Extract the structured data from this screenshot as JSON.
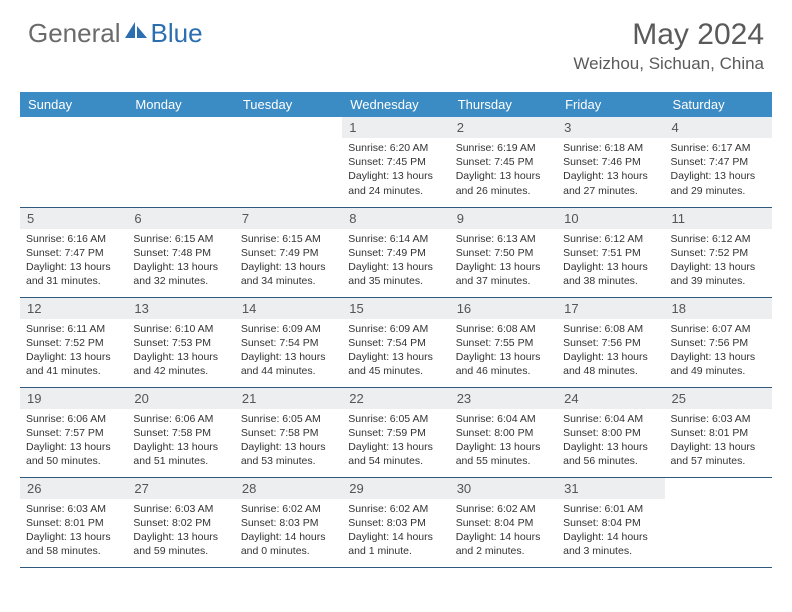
{
  "brand": {
    "name_part1": "General",
    "name_part2": "Blue"
  },
  "title": "May 2024",
  "location": "Weizhou, Sichuan, China",
  "colors": {
    "header_bg": "#3b8bc4",
    "header_text": "#ffffff",
    "daynum_bg": "#eceef0",
    "row_border": "#2f5a7e",
    "logo_gray": "#6b6b6b",
    "logo_blue": "#2c6fb0"
  },
  "weekdays": [
    "Sunday",
    "Monday",
    "Tuesday",
    "Wednesday",
    "Thursday",
    "Friday",
    "Saturday"
  ],
  "weeks": [
    [
      null,
      null,
      null,
      {
        "n": "1",
        "sr": "Sunrise: 6:20 AM",
        "ss": "Sunset: 7:45 PM",
        "dl1": "Daylight: 13 hours",
        "dl2": "and 24 minutes."
      },
      {
        "n": "2",
        "sr": "Sunrise: 6:19 AM",
        "ss": "Sunset: 7:45 PM",
        "dl1": "Daylight: 13 hours",
        "dl2": "and 26 minutes."
      },
      {
        "n": "3",
        "sr": "Sunrise: 6:18 AM",
        "ss": "Sunset: 7:46 PM",
        "dl1": "Daylight: 13 hours",
        "dl2": "and 27 minutes."
      },
      {
        "n": "4",
        "sr": "Sunrise: 6:17 AM",
        "ss": "Sunset: 7:47 PM",
        "dl1": "Daylight: 13 hours",
        "dl2": "and 29 minutes."
      }
    ],
    [
      {
        "n": "5",
        "sr": "Sunrise: 6:16 AM",
        "ss": "Sunset: 7:47 PM",
        "dl1": "Daylight: 13 hours",
        "dl2": "and 31 minutes."
      },
      {
        "n": "6",
        "sr": "Sunrise: 6:15 AM",
        "ss": "Sunset: 7:48 PM",
        "dl1": "Daylight: 13 hours",
        "dl2": "and 32 minutes."
      },
      {
        "n": "7",
        "sr": "Sunrise: 6:15 AM",
        "ss": "Sunset: 7:49 PM",
        "dl1": "Daylight: 13 hours",
        "dl2": "and 34 minutes."
      },
      {
        "n": "8",
        "sr": "Sunrise: 6:14 AM",
        "ss": "Sunset: 7:49 PM",
        "dl1": "Daylight: 13 hours",
        "dl2": "and 35 minutes."
      },
      {
        "n": "9",
        "sr": "Sunrise: 6:13 AM",
        "ss": "Sunset: 7:50 PM",
        "dl1": "Daylight: 13 hours",
        "dl2": "and 37 minutes."
      },
      {
        "n": "10",
        "sr": "Sunrise: 6:12 AM",
        "ss": "Sunset: 7:51 PM",
        "dl1": "Daylight: 13 hours",
        "dl2": "and 38 minutes."
      },
      {
        "n": "11",
        "sr": "Sunrise: 6:12 AM",
        "ss": "Sunset: 7:52 PM",
        "dl1": "Daylight: 13 hours",
        "dl2": "and 39 minutes."
      }
    ],
    [
      {
        "n": "12",
        "sr": "Sunrise: 6:11 AM",
        "ss": "Sunset: 7:52 PM",
        "dl1": "Daylight: 13 hours",
        "dl2": "and 41 minutes."
      },
      {
        "n": "13",
        "sr": "Sunrise: 6:10 AM",
        "ss": "Sunset: 7:53 PM",
        "dl1": "Daylight: 13 hours",
        "dl2": "and 42 minutes."
      },
      {
        "n": "14",
        "sr": "Sunrise: 6:09 AM",
        "ss": "Sunset: 7:54 PM",
        "dl1": "Daylight: 13 hours",
        "dl2": "and 44 minutes."
      },
      {
        "n": "15",
        "sr": "Sunrise: 6:09 AM",
        "ss": "Sunset: 7:54 PM",
        "dl1": "Daylight: 13 hours",
        "dl2": "and 45 minutes."
      },
      {
        "n": "16",
        "sr": "Sunrise: 6:08 AM",
        "ss": "Sunset: 7:55 PM",
        "dl1": "Daylight: 13 hours",
        "dl2": "and 46 minutes."
      },
      {
        "n": "17",
        "sr": "Sunrise: 6:08 AM",
        "ss": "Sunset: 7:56 PM",
        "dl1": "Daylight: 13 hours",
        "dl2": "and 48 minutes."
      },
      {
        "n": "18",
        "sr": "Sunrise: 6:07 AM",
        "ss": "Sunset: 7:56 PM",
        "dl1": "Daylight: 13 hours",
        "dl2": "and 49 minutes."
      }
    ],
    [
      {
        "n": "19",
        "sr": "Sunrise: 6:06 AM",
        "ss": "Sunset: 7:57 PM",
        "dl1": "Daylight: 13 hours",
        "dl2": "and 50 minutes."
      },
      {
        "n": "20",
        "sr": "Sunrise: 6:06 AM",
        "ss": "Sunset: 7:58 PM",
        "dl1": "Daylight: 13 hours",
        "dl2": "and 51 minutes."
      },
      {
        "n": "21",
        "sr": "Sunrise: 6:05 AM",
        "ss": "Sunset: 7:58 PM",
        "dl1": "Daylight: 13 hours",
        "dl2": "and 53 minutes."
      },
      {
        "n": "22",
        "sr": "Sunrise: 6:05 AM",
        "ss": "Sunset: 7:59 PM",
        "dl1": "Daylight: 13 hours",
        "dl2": "and 54 minutes."
      },
      {
        "n": "23",
        "sr": "Sunrise: 6:04 AM",
        "ss": "Sunset: 8:00 PM",
        "dl1": "Daylight: 13 hours",
        "dl2": "and 55 minutes."
      },
      {
        "n": "24",
        "sr": "Sunrise: 6:04 AM",
        "ss": "Sunset: 8:00 PM",
        "dl1": "Daylight: 13 hours",
        "dl2": "and 56 minutes."
      },
      {
        "n": "25",
        "sr": "Sunrise: 6:03 AM",
        "ss": "Sunset: 8:01 PM",
        "dl1": "Daylight: 13 hours",
        "dl2": "and 57 minutes."
      }
    ],
    [
      {
        "n": "26",
        "sr": "Sunrise: 6:03 AM",
        "ss": "Sunset: 8:01 PM",
        "dl1": "Daylight: 13 hours",
        "dl2": "and 58 minutes."
      },
      {
        "n": "27",
        "sr": "Sunrise: 6:03 AM",
        "ss": "Sunset: 8:02 PM",
        "dl1": "Daylight: 13 hours",
        "dl2": "and 59 minutes."
      },
      {
        "n": "28",
        "sr": "Sunrise: 6:02 AM",
        "ss": "Sunset: 8:03 PM",
        "dl1": "Daylight: 14 hours",
        "dl2": "and 0 minutes."
      },
      {
        "n": "29",
        "sr": "Sunrise: 6:02 AM",
        "ss": "Sunset: 8:03 PM",
        "dl1": "Daylight: 14 hours",
        "dl2": "and 1 minute."
      },
      {
        "n": "30",
        "sr": "Sunrise: 6:02 AM",
        "ss": "Sunset: 8:04 PM",
        "dl1": "Daylight: 14 hours",
        "dl2": "and 2 minutes."
      },
      {
        "n": "31",
        "sr": "Sunrise: 6:01 AM",
        "ss": "Sunset: 8:04 PM",
        "dl1": "Daylight: 14 hours",
        "dl2": "and 3 minutes."
      },
      null
    ]
  ]
}
